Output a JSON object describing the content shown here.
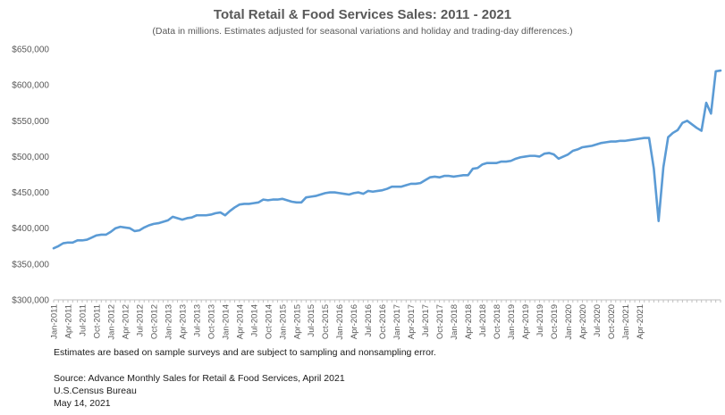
{
  "chart_data": {
    "type": "line",
    "title": "Total Retail & Food Services Sales: 2011 - 2021",
    "subtitle": "(Data in millions. Estimates adjusted for seasonal variations and holiday and trading-day differences.)",
    "ylim": [
      300000,
      650000
    ],
    "yticks": [
      300000,
      350000,
      400000,
      450000,
      500000,
      550000,
      600000,
      650000
    ],
    "ytick_labels": [
      "$300,000",
      "$350,000",
      "$400,000",
      "$450,000",
      "$500,000",
      "$550,000",
      "$600,000",
      "$650,000"
    ],
    "xtick_labels": [
      "Jan-2011",
      "Apr-2011",
      "Jul-2011",
      "Oct-2011",
      "Jan-2012",
      "Apr-2012",
      "Jul-2012",
      "Oct-2012",
      "Jan-2013",
      "Apr-2013",
      "Jul-2013",
      "Oct-2013",
      "Jan-2014",
      "Apr-2014",
      "Jul-2014",
      "Oct-2014",
      "Jan-2015",
      "Apr-2015",
      "Jul-2015",
      "Oct-2015",
      "Jan-2016",
      "Apr-2016",
      "Jul-2016",
      "Oct-2016",
      "Jan-2017",
      "Apr-2017",
      "Jul-2017",
      "Oct-2017",
      "Jan-2018",
      "Apr-2018",
      "Jul-2018",
      "Oct-2018",
      "Jan-2019",
      "Apr-2019",
      "Jul-2019",
      "Oct-2019",
      "Jan-2020",
      "Apr-2020",
      "Jul-2020",
      "Oct-2020",
      "Jan-2021",
      "Apr-2021"
    ],
    "x_start": "Jan-2011",
    "x_end": "Apr-2021",
    "grid": false,
    "line_color": "#5b9bd5",
    "series": [
      {
        "values": [
          372000,
          375000,
          379000,
          380000,
          380000,
          383000,
          383000,
          384000,
          387000,
          390000,
          391000,
          391000,
          395000,
          400000,
          402000,
          401000,
          400000,
          396000,
          397000,
          401000,
          404000,
          406000,
          407000,
          409000,
          411000,
          416000,
          414000,
          412000,
          414000,
          415000,
          418000,
          418000,
          418000,
          419000,
          421000,
          422000,
          418000,
          424000,
          429000,
          433000,
          434000,
          434000,
          435000,
          436000,
          440000,
          439000,
          440000,
          440000,
          441000,
          439000,
          437000,
          436000,
          436000,
          443000,
          444000,
          445000,
          447000,
          449000,
          450000,
          450000,
          449000,
          448000,
          447000,
          449000,
          450000,
          448000,
          452000,
          451000,
          452000,
          453000,
          455000,
          458000,
          458000,
          458000,
          460000,
          462000,
          462000,
          463000,
          467000,
          471000,
          472000,
          471000,
          473000,
          473000,
          472000,
          473000,
          474000,
          474000,
          483000,
          484000,
          489000,
          491000,
          491000,
          491000,
          493000,
          493000,
          494000,
          497000,
          499000,
          500000,
          501000,
          501000,
          500000,
          504000,
          505000,
          503000,
          497000,
          500000,
          503000,
          508000,
          510000,
          513000,
          514000,
          515000,
          517000,
          519000,
          520000,
          521000,
          521000,
          522000,
          522000,
          523000,
          524000,
          525000,
          526000,
          526000,
          483000,
          410000,
          485000,
          527000,
          533000,
          537000,
          547000,
          550000,
          545000,
          540000,
          536000,
          575000,
          560000,
          619000,
          620000
        ]
      }
    ]
  },
  "footer": {
    "note": "Estimates are based on sample surveys and are subject to sampling and nonsampling error.",
    "source": "Source: Advance Monthly Sales for Retail & Food Services, April 2021",
    "agency": "U.S.Census Bureau",
    "date": "May 14, 2021"
  }
}
